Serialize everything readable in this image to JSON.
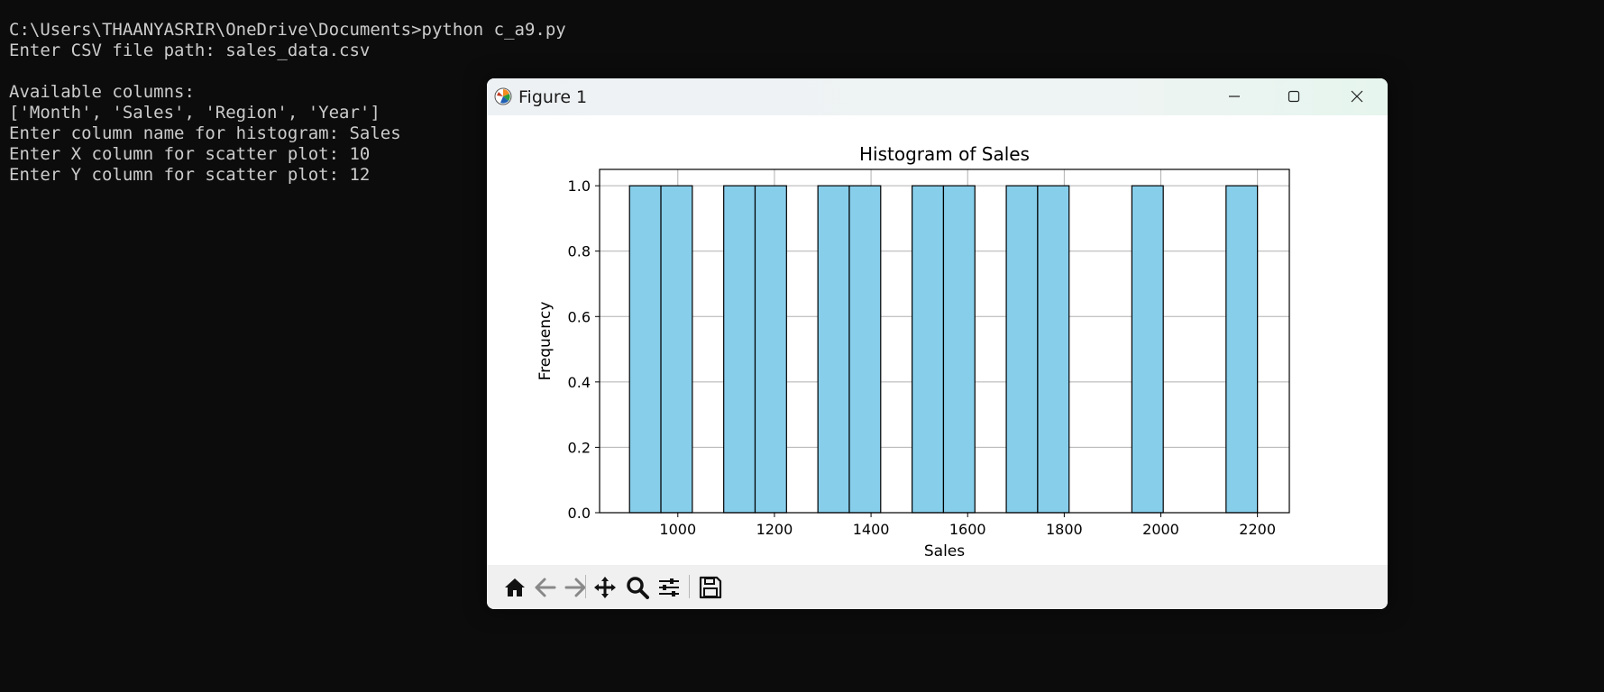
{
  "terminal": {
    "lines": [
      "C:\\Users\\THAANYASRIR\\OneDrive\\Documents>python c_a9.py",
      "Enter CSV file path: sales_data.csv",
      "",
      "Available columns:",
      "['Month', 'Sales', 'Region', 'Year']",
      "Enter column name for histogram: Sales",
      "Enter X column for scatter plot: 10",
      "Enter Y column for scatter plot: 12"
    ]
  },
  "window": {
    "title": "Figure 1",
    "controls": [
      "minimize-icon",
      "maximize-icon",
      "close-icon"
    ]
  },
  "toolbar": {
    "buttons": [
      "home-icon",
      "back-icon",
      "forward-icon",
      "pan-icon",
      "zoom-icon",
      "configure-subplots-icon",
      "save-icon"
    ]
  },
  "colors": {
    "terminal_bg": "#0c0c0c",
    "terminal_text": "#cccccc",
    "bar_fill": "#87ceeb",
    "bar_edge": "#000000",
    "grid": "#b0b0b0"
  },
  "chart_data": {
    "type": "bar",
    "title": "Histogram of Sales",
    "xlabel": "Sales",
    "ylabel": "Frequency",
    "xlim": [
      838,
      2266
    ],
    "ylim": [
      0,
      1.05
    ],
    "xticks": [
      1000,
      1200,
      1400,
      1600,
      1800,
      2000,
      2200
    ],
    "xtick_labels": [
      "1000",
      "1200",
      "1400",
      "1600",
      "1800",
      "2000",
      "2200"
    ],
    "yticks": [
      0,
      0.2,
      0.4,
      0.6,
      0.8,
      1.0
    ],
    "ytick_labels": [
      "0.0",
      "0.2",
      "0.4",
      "0.6",
      "0.8",
      "1.0"
    ],
    "grid": true,
    "bins": [
      {
        "start": 900,
        "end": 965,
        "count": 1
      },
      {
        "start": 965,
        "end": 1030,
        "count": 1
      },
      {
        "start": 1095,
        "end": 1160,
        "count": 1
      },
      {
        "start": 1160,
        "end": 1225,
        "count": 1
      },
      {
        "start": 1290,
        "end": 1355,
        "count": 1
      },
      {
        "start": 1355,
        "end": 1420,
        "count": 1
      },
      {
        "start": 1485,
        "end": 1550,
        "count": 1
      },
      {
        "start": 1550,
        "end": 1615,
        "count": 1
      },
      {
        "start": 1680,
        "end": 1745,
        "count": 1
      },
      {
        "start": 1745,
        "end": 1810,
        "count": 1
      },
      {
        "start": 1940,
        "end": 2005,
        "count": 1
      },
      {
        "start": 2135,
        "end": 2200,
        "count": 1
      }
    ]
  }
}
